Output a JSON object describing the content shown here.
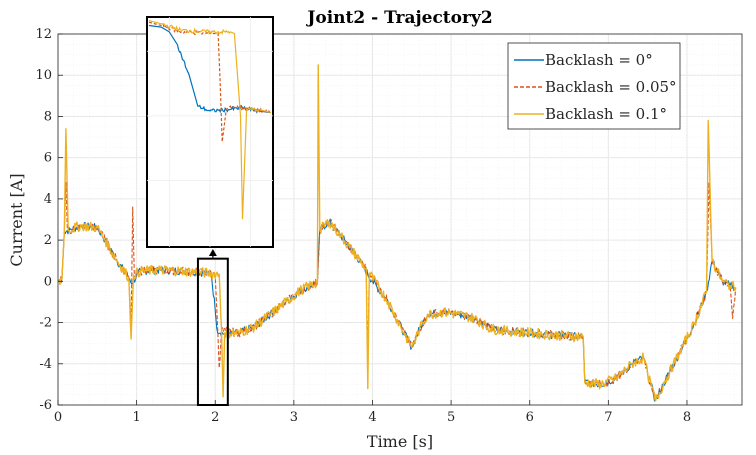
{
  "chart_data": {
    "type": "line",
    "title": "Joint2 - Trajectory2",
    "xlabel": "Time [s]",
    "ylabel": "Current [A]",
    "xlim": [
      0,
      8.7
    ],
    "ylim": [
      -6,
      12
    ],
    "xticks": [
      0,
      1,
      2,
      3,
      4,
      5,
      6,
      7,
      8
    ],
    "yticks": [
      -6,
      -4,
      -2,
      0,
      2,
      4,
      6,
      8,
      10,
      12
    ],
    "grid": true,
    "legend_position": "top-right",
    "series": [
      {
        "name": "Backlash = 0°",
        "color": "#0072BD",
        "style": "solid",
        "points": [
          [
            0,
            0.0
          ],
          [
            0.05,
            0.1
          ],
          [
            0.08,
            2.4
          ],
          [
            0.15,
            2.5
          ],
          [
            0.3,
            2.7
          ],
          [
            0.5,
            2.6
          ],
          [
            0.6,
            2.0
          ],
          [
            0.75,
            1.0
          ],
          [
            0.9,
            0.2
          ],
          [
            0.95,
            -0.1
          ],
          [
            1.0,
            0.3
          ],
          [
            1.05,
            0.5
          ],
          [
            1.3,
            0.55
          ],
          [
            1.6,
            0.5
          ],
          [
            1.9,
            0.4
          ],
          [
            1.95,
            0.35
          ],
          [
            2.0,
            -1.4
          ],
          [
            2.02,
            -2.3
          ],
          [
            2.1,
            -2.55
          ],
          [
            2.3,
            -2.5
          ],
          [
            2.5,
            -2.2
          ],
          [
            2.7,
            -1.6
          ],
          [
            2.9,
            -1.0
          ],
          [
            3.1,
            -0.4
          ],
          [
            3.3,
            -0.05
          ],
          [
            3.33,
            2.5
          ],
          [
            3.45,
            2.9
          ],
          [
            3.6,
            2.2
          ],
          [
            3.8,
            1.2
          ],
          [
            4.0,
            0.0
          ],
          [
            4.2,
            -1.0
          ],
          [
            4.4,
            -2.5
          ],
          [
            4.5,
            -3.2
          ],
          [
            4.6,
            -2.3
          ],
          [
            4.7,
            -1.6
          ],
          [
            4.9,
            -1.5
          ],
          [
            5.1,
            -1.6
          ],
          [
            5.3,
            -1.8
          ],
          [
            5.5,
            -2.3
          ],
          [
            5.7,
            -2.4
          ],
          [
            6.0,
            -2.5
          ],
          [
            6.3,
            -2.6
          ],
          [
            6.68,
            -2.7
          ],
          [
            6.7,
            -4.9
          ],
          [
            6.9,
            -5.0
          ],
          [
            7.1,
            -4.7
          ],
          [
            7.3,
            -4.0
          ],
          [
            7.45,
            -3.7
          ],
          [
            7.5,
            -4.5
          ],
          [
            7.6,
            -5.8
          ],
          [
            7.7,
            -5.0
          ],
          [
            7.9,
            -3.5
          ],
          [
            8.1,
            -2.0
          ],
          [
            8.25,
            -0.5
          ],
          [
            8.32,
            1.0
          ],
          [
            8.45,
            0.0
          ],
          [
            8.55,
            -0.2
          ],
          [
            8.62,
            -0.3
          ]
        ]
      },
      {
        "name": "Backlash = 0.05°",
        "color": "#D95319",
        "style": "dashed",
        "points": [
          [
            0,
            0.0
          ],
          [
            0.05,
            0.1
          ],
          [
            0.08,
            2.4
          ],
          [
            0.1,
            4.8
          ],
          [
            0.12,
            2.4
          ],
          [
            0.3,
            2.7
          ],
          [
            0.5,
            2.6
          ],
          [
            0.6,
            2.0
          ],
          [
            0.75,
            1.0
          ],
          [
            0.9,
            0.2
          ],
          [
            0.93,
            -2.2
          ],
          [
            0.95,
            3.6
          ],
          [
            0.97,
            0.3
          ],
          [
            1.05,
            0.5
          ],
          [
            1.3,
            0.55
          ],
          [
            1.6,
            0.5
          ],
          [
            1.9,
            0.4
          ],
          [
            2.0,
            0.3
          ],
          [
            2.03,
            -2.2
          ],
          [
            2.05,
            -4.2
          ],
          [
            2.08,
            -2.4
          ],
          [
            2.3,
            -2.5
          ],
          [
            2.5,
            -2.2
          ],
          [
            2.7,
            -1.6
          ],
          [
            2.9,
            -1.0
          ],
          [
            3.1,
            -0.4
          ],
          [
            3.3,
            -0.05
          ],
          [
            3.33,
            2.5
          ],
          [
            3.45,
            2.9
          ],
          [
            3.6,
            2.2
          ],
          [
            3.8,
            1.2
          ],
          [
            3.92,
            0.6
          ],
          [
            3.94,
            -3.6
          ],
          [
            3.96,
            0.4
          ],
          [
            4.2,
            -1.0
          ],
          [
            4.4,
            -2.5
          ],
          [
            4.5,
            -3.2
          ],
          [
            4.6,
            -2.3
          ],
          [
            4.7,
            -1.6
          ],
          [
            4.9,
            -1.5
          ],
          [
            5.1,
            -1.6
          ],
          [
            5.3,
            -1.8
          ],
          [
            5.5,
            -2.3
          ],
          [
            5.7,
            -2.4
          ],
          [
            6.0,
            -2.5
          ],
          [
            6.3,
            -2.6
          ],
          [
            6.68,
            -2.7
          ],
          [
            6.7,
            -4.9
          ],
          [
            6.9,
            -5.0
          ],
          [
            7.1,
            -4.7
          ],
          [
            7.3,
            -4.0
          ],
          [
            7.45,
            -3.7
          ],
          [
            7.5,
            -4.5
          ],
          [
            7.6,
            -5.8
          ],
          [
            7.7,
            -5.0
          ],
          [
            7.9,
            -3.5
          ],
          [
            8.1,
            -2.0
          ],
          [
            8.25,
            -0.5
          ],
          [
            8.28,
            4.8
          ],
          [
            8.32,
            1.0
          ],
          [
            8.45,
            0.0
          ],
          [
            8.55,
            -0.2
          ],
          [
            8.58,
            -1.8
          ],
          [
            8.62,
            -0.3
          ]
        ]
      },
      {
        "name": "Backlash = 0.1°",
        "color": "#EDB120",
        "style": "solid",
        "points": [
          [
            0,
            0.0
          ],
          [
            0.05,
            0.1
          ],
          [
            0.08,
            2.4
          ],
          [
            0.1,
            7.4
          ],
          [
            0.13,
            2.5
          ],
          [
            0.3,
            2.7
          ],
          [
            0.5,
            2.6
          ],
          [
            0.6,
            2.0
          ],
          [
            0.75,
            1.0
          ],
          [
            0.9,
            0.2
          ],
          [
            0.93,
            -2.8
          ],
          [
            0.96,
            0.3
          ],
          [
            1.05,
            0.5
          ],
          [
            1.3,
            0.55
          ],
          [
            1.6,
            0.5
          ],
          [
            1.9,
            0.4
          ],
          [
            2.05,
            0.35
          ],
          [
            2.08,
            -2.3
          ],
          [
            2.1,
            -5.6
          ],
          [
            2.12,
            -2.5
          ],
          [
            2.3,
            -2.5
          ],
          [
            2.5,
            -2.2
          ],
          [
            2.7,
            -1.6
          ],
          [
            2.9,
            -1.0
          ],
          [
            3.1,
            -0.4
          ],
          [
            3.3,
            -0.05
          ],
          [
            3.31,
            10.5
          ],
          [
            3.33,
            2.5
          ],
          [
            3.45,
            2.9
          ],
          [
            3.6,
            2.2
          ],
          [
            3.8,
            1.2
          ],
          [
            3.92,
            0.6
          ],
          [
            3.94,
            -5.2
          ],
          [
            3.96,
            0.4
          ],
          [
            4.2,
            -1.0
          ],
          [
            4.4,
            -2.5
          ],
          [
            4.5,
            -3.2
          ],
          [
            4.6,
            -2.3
          ],
          [
            4.7,
            -1.6
          ],
          [
            4.9,
            -1.5
          ],
          [
            5.1,
            -1.6
          ],
          [
            5.3,
            -1.8
          ],
          [
            5.5,
            -2.3
          ],
          [
            5.7,
            -2.4
          ],
          [
            6.0,
            -2.5
          ],
          [
            6.3,
            -2.6
          ],
          [
            6.68,
            -2.7
          ],
          [
            6.7,
            -4.9
          ],
          [
            6.9,
            -5.0
          ],
          [
            7.1,
            -4.7
          ],
          [
            7.3,
            -4.0
          ],
          [
            7.45,
            -3.7
          ],
          [
            7.5,
            -4.5
          ],
          [
            7.6,
            -5.8
          ],
          [
            7.7,
            -5.0
          ],
          [
            7.9,
            -3.5
          ],
          [
            8.1,
            -2.0
          ],
          [
            8.25,
            -0.5
          ],
          [
            8.27,
            7.8
          ],
          [
            8.32,
            1.0
          ],
          [
            8.45,
            0.0
          ],
          [
            8.55,
            -0.2
          ],
          [
            8.62,
            -0.3
          ]
        ]
      }
    ],
    "inset": {
      "xlim": [
        1.85,
        2.15
      ],
      "ylim": [
        -6,
        1
      ],
      "series": [
        {
          "name": "Backlash = 0°",
          "points": [
            [
              1.85,
              0.8
            ],
            [
              1.88,
              0.75
            ],
            [
              1.9,
              0.6
            ],
            [
              1.92,
              0.2
            ],
            [
              1.95,
              -0.8
            ],
            [
              1.97,
              -1.7
            ],
            [
              2.0,
              -1.85
            ],
            [
              2.05,
              -1.8
            ],
            [
              2.08,
              -1.75
            ],
            [
              2.12,
              -1.85
            ],
            [
              2.15,
              -1.9
            ]
          ]
        },
        {
          "name": "Backlash = 0.05°",
          "points": [
            [
              1.85,
              0.9
            ],
            [
              1.88,
              0.8
            ],
            [
              1.93,
              0.6
            ],
            [
              2.0,
              0.55
            ],
            [
              2.02,
              0.55
            ],
            [
              2.025,
              -1.0
            ],
            [
              2.03,
              -2.8
            ],
            [
              2.04,
              -1.8
            ],
            [
              2.05,
              -1.7
            ],
            [
              2.1,
              -1.8
            ],
            [
              2.15,
              -1.9
            ]
          ]
        },
        {
          "name": "Backlash = 0.1°",
          "points": [
            [
              1.85,
              0.95
            ],
            [
              1.88,
              0.85
            ],
            [
              1.93,
              0.65
            ],
            [
              2.0,
              0.6
            ],
            [
              2.05,
              0.6
            ],
            [
              2.06,
              0.55
            ],
            [
              2.075,
              -2.0
            ],
            [
              2.08,
              -5.2
            ],
            [
              2.09,
              -1.8
            ],
            [
              2.12,
              -1.8
            ],
            [
              2.15,
              -1.9
            ]
          ]
        }
      ]
    }
  }
}
